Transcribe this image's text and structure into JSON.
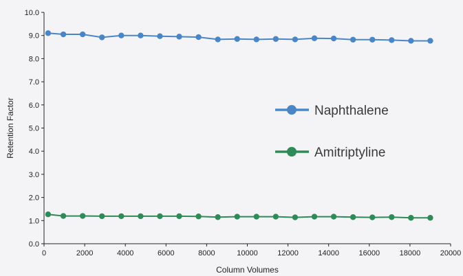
{
  "chart_data": {
    "type": "line",
    "title": "",
    "xlabel": "Column Volumes",
    "ylabel": "Retention Factor",
    "xlim": [
      0,
      20000
    ],
    "ylim": [
      0,
      10
    ],
    "x_ticks": [
      "0",
      "2000",
      "4000",
      "6000",
      "8000",
      "10000",
      "12000",
      "14000",
      "16000",
      "18000",
      "20000"
    ],
    "y_ticks": [
      "0.0",
      "1.0",
      "2.0",
      "3.0",
      "4.0",
      "5.0",
      "6.0",
      "7.0",
      "8.0",
      "9.0",
      "10.0"
    ],
    "grid": false,
    "legend_position": "center-right",
    "series": [
      {
        "name": "Naphthalene",
        "color": "#4a86c5",
        "x": [
          200,
          950,
          1900,
          2850,
          3800,
          4750,
          5700,
          6650,
          7600,
          8550,
          9500,
          10450,
          11400,
          12350,
          13300,
          14250,
          15200,
          16150,
          17100,
          18050,
          19000
        ],
        "y": [
          9.1,
          9.05,
          9.05,
          8.92,
          9.0,
          9.0,
          8.97,
          8.95,
          8.93,
          8.83,
          8.85,
          8.83,
          8.85,
          8.83,
          8.88,
          8.87,
          8.82,
          8.82,
          8.8,
          8.77,
          8.77
        ]
      },
      {
        "name": "Amitriptyline",
        "color": "#2e8b57",
        "x": [
          200,
          950,
          1900,
          2850,
          3800,
          4750,
          5700,
          6650,
          7600,
          8550,
          9500,
          10450,
          11400,
          12350,
          13300,
          14250,
          15200,
          16150,
          17100,
          18050,
          19000
        ],
        "y": [
          1.27,
          1.2,
          1.2,
          1.19,
          1.19,
          1.19,
          1.19,
          1.19,
          1.18,
          1.15,
          1.17,
          1.17,
          1.17,
          1.14,
          1.17,
          1.17,
          1.15,
          1.14,
          1.15,
          1.12,
          1.12
        ]
      }
    ]
  }
}
